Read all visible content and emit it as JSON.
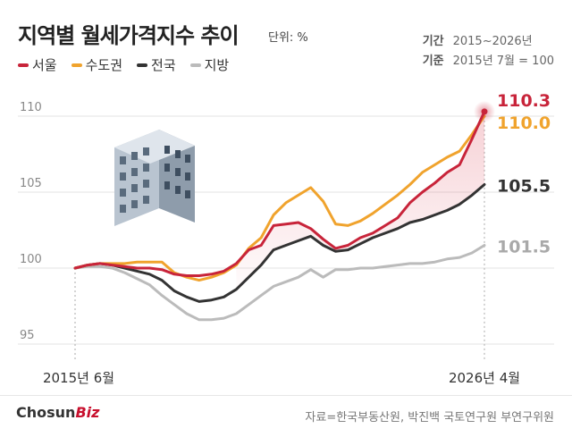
{
  "title": "지역별 월세가격지수 추이",
  "unit_label": "단위: %",
  "meta": {
    "period_label": "기간",
    "period_value": "2015~2026년",
    "base_label": "기준",
    "base_value": "2015년 7월 = 100"
  },
  "source": "자료=한국부동산원, 박진백 국토연구원 부연구위원",
  "logo": {
    "main": "Chosun",
    "accent": "Biz"
  },
  "icons": {
    "building": "building-illustration"
  },
  "chart_data": {
    "type": "line",
    "ylim": [
      94,
      112
    ],
    "yticks": [
      110,
      105,
      100,
      95
    ],
    "xtick_labels": [
      "2015년 6월",
      "2026년 4월"
    ],
    "grid": true,
    "legend_placement": "top-left",
    "series": [
      {
        "name": "서울",
        "color": "#c8243a",
        "end_label": "110.3",
        "values": [
          100,
          100.2,
          100.3,
          100.2,
          100.1,
          100.0,
          100.0,
          99.9,
          99.6,
          99.5,
          99.5,
          99.6,
          99.8,
          100.3,
          101.2,
          101.5,
          102.8,
          102.9,
          103.0,
          102.6,
          101.9,
          101.3,
          101.5,
          102.0,
          102.3,
          102.8,
          103.3,
          104.3,
          105.0,
          105.6,
          106.3,
          106.8,
          108.5,
          110.3
        ]
      },
      {
        "name": "수도권",
        "color": "#f0a32d",
        "end_label": "110.0",
        "values": [
          100,
          100.2,
          100.3,
          100.3,
          100.3,
          100.4,
          100.4,
          100.4,
          99.7,
          99.4,
          99.2,
          99.4,
          99.7,
          100.2,
          101.3,
          102.0,
          103.5,
          104.3,
          104.8,
          105.3,
          104.4,
          102.9,
          102.8,
          103.1,
          103.6,
          104.2,
          104.8,
          105.5,
          106.3,
          106.8,
          107.3,
          107.7,
          108.8,
          110.0
        ]
      },
      {
        "name": "전국",
        "color": "#333333",
        "end_label": "105.5",
        "values": [
          100,
          100.2,
          100.3,
          100.2,
          100.0,
          99.8,
          99.6,
          99.2,
          98.5,
          98.1,
          97.8,
          97.9,
          98.1,
          98.6,
          99.4,
          100.2,
          101.2,
          101.5,
          101.8,
          102.1,
          101.5,
          101.1,
          101.2,
          101.6,
          102.0,
          102.3,
          102.6,
          103.0,
          103.2,
          103.5,
          103.8,
          104.2,
          104.8,
          105.5
        ]
      },
      {
        "name": "지방",
        "color": "#bbbbbb",
        "end_label": "101.5",
        "values": [
          100,
          100.1,
          100.1,
          100.0,
          99.7,
          99.3,
          98.9,
          98.2,
          97.6,
          97.0,
          96.6,
          96.6,
          96.7,
          97.0,
          97.6,
          98.2,
          98.8,
          99.1,
          99.4,
          99.9,
          99.4,
          99.9,
          99.9,
          100.0,
          100.0,
          100.1,
          100.2,
          100.3,
          100.3,
          100.4,
          100.6,
          100.7,
          101.0,
          101.5
        ]
      }
    ]
  }
}
